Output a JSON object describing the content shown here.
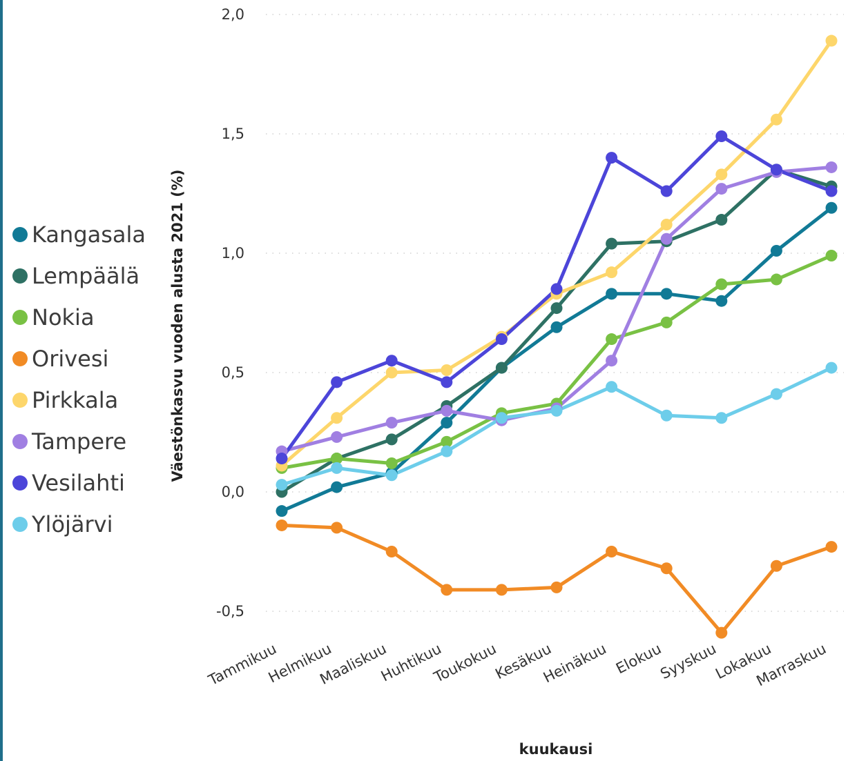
{
  "chart_data": {
    "type": "line",
    "xlabel": "kuukausi",
    "ylabel": "Väestönkasvu vuoden alusta 2021 (%)",
    "categories": [
      "Tammikuu",
      "Helmikuu",
      "Maaliskuu",
      "Huhtikuu",
      "Toukokuu",
      "Kesäkuu",
      "Heinäkuu",
      "Elokuu",
      "Syyskuu",
      "Lokakuu",
      "Marraskuu"
    ],
    "ylim": [
      -0.6,
      2.0
    ],
    "yticks": [
      2.0,
      1.5,
      1.0,
      0.5,
      0.0,
      -0.5
    ],
    "ytick_labels": [
      "2,0",
      "1,5",
      "1,0",
      "0,5",
      "0,0",
      "-0,5"
    ],
    "grid": "horizontal dotted",
    "legend_position": "left",
    "series": [
      {
        "name": "Kangasala",
        "color": "#117a96",
        "values": [
          -0.08,
          0.02,
          0.08,
          0.29,
          0.52,
          0.69,
          0.83,
          0.83,
          0.8,
          1.01,
          1.19
        ]
      },
      {
        "name": "Lempäälä",
        "color": "#2e7164",
        "values": [
          0.0,
          0.14,
          0.22,
          0.36,
          0.52,
          0.77,
          1.04,
          1.05,
          1.14,
          1.35,
          1.28
        ]
      },
      {
        "name": "Nokia",
        "color": "#79c144",
        "values": [
          0.1,
          0.14,
          0.12,
          0.21,
          0.33,
          0.37,
          0.64,
          0.71,
          0.87,
          0.89,
          0.99
        ]
      },
      {
        "name": "Orivesi",
        "color": "#f18b25",
        "values": [
          -0.14,
          -0.15,
          -0.25,
          -0.41,
          -0.41,
          -0.4,
          -0.25,
          -0.32,
          -0.59,
          -0.31,
          -0.23
        ]
      },
      {
        "name": "Pirkkala",
        "color": "#fdd66b",
        "values": [
          0.11,
          0.31,
          0.5,
          0.51,
          0.65,
          0.83,
          0.92,
          1.12,
          1.33,
          1.56,
          1.89
        ]
      },
      {
        "name": "Tampere",
        "color": "#a07fe2",
        "values": [
          0.17,
          0.23,
          0.29,
          0.34,
          0.3,
          0.35,
          0.55,
          1.06,
          1.27,
          1.34,
          1.36
        ]
      },
      {
        "name": "Vesilahti",
        "color": "#4c45d9",
        "values": [
          0.14,
          0.46,
          0.55,
          0.46,
          0.64,
          0.85,
          1.4,
          1.26,
          1.49,
          1.35,
          1.26
        ]
      },
      {
        "name": "Ylöjärvi",
        "color": "#6dcdea",
        "values": [
          0.03,
          0.1,
          0.07,
          0.17,
          0.31,
          0.34,
          0.44,
          0.32,
          0.31,
          0.41,
          0.52
        ]
      }
    ]
  }
}
